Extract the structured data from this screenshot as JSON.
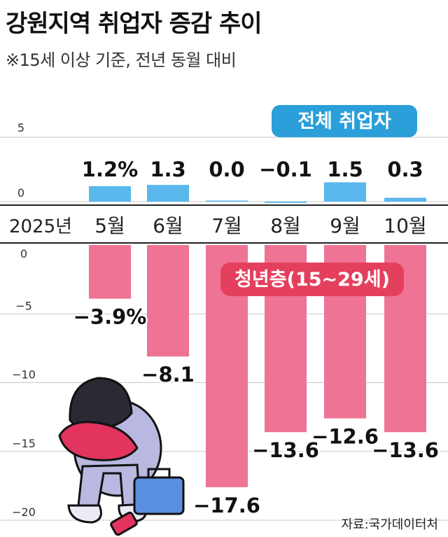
{
  "header": {
    "title": "강원지역 취업자 증감 추이",
    "subtitle": "※15세 이상 기준, 전년 동월 대비"
  },
  "source": "자료:국가데이터처",
  "chart_data": [
    {
      "type": "bar",
      "series_label": "전체 취업자",
      "categories": [
        "5월",
        "6월",
        "7월",
        "8월",
        "9월",
        "10월"
      ],
      "values": [
        1.2,
        1.3,
        0.0,
        -0.1,
        1.5,
        0.3
      ],
      "value_labels": [
        "1.2%",
        "1.3",
        "0.0",
        "−0.1",
        "1.5",
        "0.3"
      ],
      "ylim": [
        0,
        5
      ],
      "yticks": [
        "0",
        "5"
      ],
      "color": "#5ab8ec"
    },
    {
      "type": "bar",
      "series_label": "청년층(15~29세)",
      "categories": [
        "5월",
        "6월",
        "7월",
        "8월",
        "9월",
        "10월"
      ],
      "values": [
        -3.9,
        -8.1,
        -17.6,
        -13.6,
        -12.6,
        -13.6
      ],
      "value_labels": [
        "−3.9%",
        "−8.1",
        "−17.6",
        "−13.6",
        "−12.6",
        "−13.6"
      ],
      "ylim": [
        -20,
        0
      ],
      "yticks": [
        "0",
        "−5",
        "−10",
        "−15",
        "−20"
      ],
      "color": "#ee7394"
    }
  ],
  "x_axis": {
    "year_label": "2025년",
    "categories": [
      "5월",
      "6월",
      "7월",
      "8월",
      "9월",
      "10월"
    ]
  },
  "colors": {
    "total_bar": "#5ab8ec",
    "youth_bar": "#ee7394",
    "total_badge": "#2a9fd9",
    "youth_badge": "#e4405e",
    "grid": "#c8c8c8"
  }
}
